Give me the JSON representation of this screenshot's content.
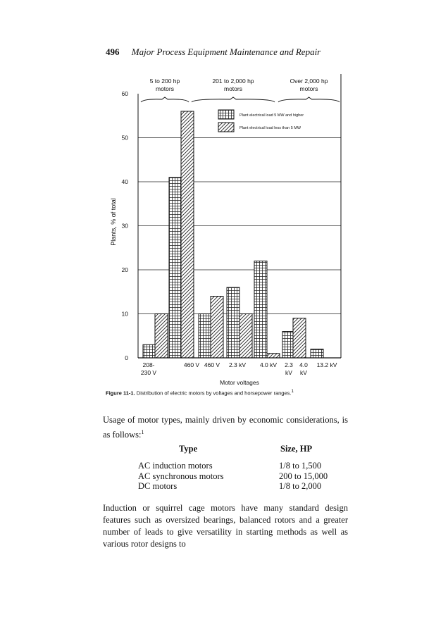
{
  "header": {
    "page_number": "496",
    "title": "Major Process Equipment Maintenance and Repair"
  },
  "chart_data": {
    "type": "bar",
    "ylabel": "Plants, % of total",
    "xlabel": "Motor voltages",
    "ylim": [
      0,
      60
    ],
    "yticks": [
      "0",
      "10",
      "20",
      "30",
      "40",
      "50",
      "60"
    ],
    "grid": true,
    "legend_position": "top-right",
    "categories": [
      "208-230 V",
      "460 V",
      "460 V",
      "2.3 kV",
      "4.0 kV",
      "2.3 kV",
      "4.0 kV",
      "13.2 kV"
    ],
    "category_labels": [
      {
        "line1": "208-",
        "line2": "230 V"
      },
      {
        "line1": "460 V",
        "line2": ""
      },
      {
        "line1": "460 V",
        "line2": ""
      },
      {
        "line1": "2.3 kV",
        "line2": ""
      },
      {
        "line1": "4.0 kV",
        "line2": ""
      },
      {
        "line1": "2.3",
        "line2": "kV"
      },
      {
        "line1": "4.0",
        "line2": "kV"
      },
      {
        "line1": "13.2 kV",
        "line2": ""
      }
    ],
    "groups": [
      {
        "label_line1": "5 to 200 hp",
        "label_line2": "motors",
        "categories": [
          0,
          1
        ]
      },
      {
        "label_line1": "201 to 2,000 hp",
        "label_line2": "motors",
        "categories": [
          2,
          3,
          4
        ]
      },
      {
        "label_line1": "Over 2,000 hp",
        "label_line2": "motors",
        "categories": [
          5,
          6,
          7
        ]
      }
    ],
    "series": [
      {
        "name": "Plant electrical load 5 MW and higher",
        "pattern": "grid",
        "values": [
          3,
          41,
          10,
          16,
          22,
          6,
          null,
          2
        ]
      },
      {
        "name": "Plant electrical load less than 5 MW",
        "pattern": "hatch",
        "values": [
          10,
          56,
          14,
          10,
          1,
          9,
          null,
          null
        ]
      }
    ]
  },
  "caption": {
    "label": "Figure 11-1.",
    "text": " Distribution of electric motors by voltages and horsepower ranges.",
    "ref": "1"
  },
  "intro": {
    "text": "Usage of motor types, mainly driven by economic considerations, is as follows:",
    "ref": "1"
  },
  "table": {
    "col1": "Type",
    "col2": "Size, HP",
    "rows": [
      {
        "type": "AC induction motors",
        "size": "1/8 to 1,500"
      },
      {
        "type": "AC synchronous motors",
        "size": "200 to 15,000"
      },
      {
        "type": "DC motors",
        "size": "1/8 to 2,000"
      }
    ]
  },
  "paragraph": "Induction or squirrel cage motors have many standard design features such as oversized bearings, balanced rotors and a greater number of leads to give versatility in starting methods as well as various rotor designs to"
}
